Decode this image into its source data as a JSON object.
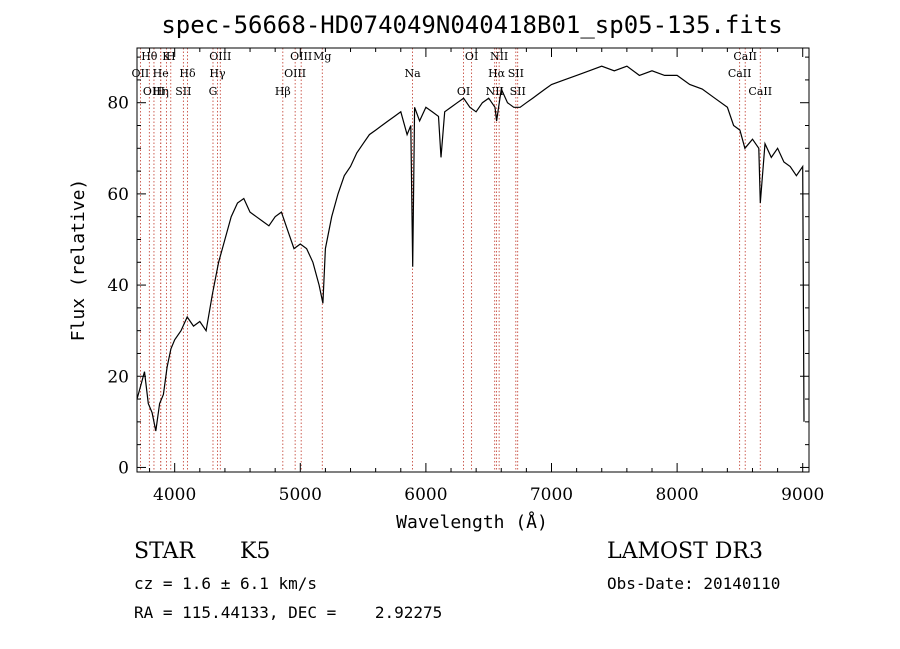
{
  "chart_data": {
    "type": "line",
    "title": "spec-56668-HD074049N040418B01_sp05-135.fits",
    "xlabel": "Wavelength (Å)",
    "ylabel": "Flux (relative)",
    "xlim": [
      3700,
      9050
    ],
    "ylim": [
      -1,
      92
    ],
    "x_ticks": [
      4000,
      5000,
      6000,
      7000,
      8000,
      9000
    ],
    "y_ticks": [
      0,
      20,
      40,
      60,
      80
    ],
    "grid": false,
    "series_color": "#000000",
    "line_color": "#c0392b",
    "series": [
      {
        "x": [
          3700,
          3730,
          3760,
          3790,
          3820,
          3850,
          3880,
          3910,
          3940,
          3970,
          4000,
          4050,
          4100,
          4150,
          4200,
          4250,
          4300,
          4350,
          4400,
          4450,
          4500,
          4550,
          4600,
          4650,
          4700,
          4750,
          4800,
          4850,
          4900,
          4950,
          5000,
          5050,
          5100,
          5150,
          5180,
          5200,
          5250,
          5300,
          5350,
          5400,
          5450,
          5500,
          5550,
          5600,
          5650,
          5700,
          5750,
          5800,
          5850,
          5880,
          5895,
          5910,
          5950,
          6000,
          6050,
          6100,
          6120,
          6150,
          6200,
          6250,
          6300,
          6350,
          6400,
          6450,
          6500,
          6550,
          6563,
          6600,
          6650,
          6700,
          6750,
          6800,
          6850,
          6900,
          6950,
          7000,
          7100,
          7200,
          7300,
          7400,
          7500,
          7600,
          7700,
          7800,
          7900,
          8000,
          8100,
          8200,
          8300,
          8400,
          8450,
          8500,
          8540,
          8600,
          8650,
          8662,
          8700,
          8750,
          8800,
          8850,
          8900,
          8950,
          9000,
          9010
        ],
        "y": [
          15,
          18,
          21,
          14,
          12,
          8,
          14,
          16,
          22,
          26,
          28,
          30,
          33,
          31,
          32,
          30,
          38,
          45,
          50,
          55,
          58,
          59,
          56,
          55,
          54,
          53,
          55,
          56,
          52,
          48,
          49,
          48,
          45,
          40,
          36,
          48,
          55,
          60,
          64,
          66,
          69,
          71,
          73,
          74,
          75,
          76,
          77,
          78,
          73,
          75,
          44,
          79,
          76,
          79,
          78,
          77,
          68,
          78,
          79,
          80,
          81,
          79,
          78,
          80,
          81,
          79,
          76,
          83,
          80,
          79,
          79,
          80,
          81,
          82,
          83,
          84,
          85,
          86,
          87,
          88,
          87,
          88,
          86,
          87,
          86,
          86,
          84,
          83,
          81,
          79,
          75,
          74,
          70,
          72,
          70,
          58,
          71,
          68,
          70,
          67,
          66,
          64,
          66,
          10
        ]
      }
    ],
    "lines": [
      {
        "label": "Hθ",
        "x": 3798
      },
      {
        "label": "OII",
        "x": 3727
      },
      {
        "label": "OIII",
        "x": 3835
      },
      {
        "label": "K",
        "x": 3934
      },
      {
        "label": "He",
        "x": 3889
      },
      {
        "label": "Hη",
        "x": 3889
      },
      {
        "label": "H",
        "x": 3969
      },
      {
        "label": "Hδ",
        "x": 4102
      },
      {
        "label": "SII",
        "x": 4069
      },
      {
        "label": "OIII",
        "x": 4363
      },
      {
        "label": "Hγ",
        "x": 4341
      },
      {
        "label": "G",
        "x": 4305
      },
      {
        "label": "OIII",
        "x": 5007
      },
      {
        "label": "OIII",
        "x": 4959
      },
      {
        "label": "Hβ",
        "x": 4861
      },
      {
        "label": "Mg",
        "x": 5175
      },
      {
        "label": "Na",
        "x": 5894
      },
      {
        "label": "OI",
        "x": 6300
      },
      {
        "label": "OI",
        "x": 6364
      },
      {
        "label": "Hα",
        "x": 6563
      },
      {
        "label": "NII",
        "x": 6548
      },
      {
        "label": "NII",
        "x": 6583
      },
      {
        "label": "SII",
        "x": 6716
      },
      {
        "label": "SII",
        "x": 6731
      },
      {
        "label": "CaII",
        "x": 8542
      },
      {
        "label": "CaII",
        "x": 8498
      },
      {
        "label": "CaII",
        "x": 8662
      }
    ]
  },
  "footer": {
    "class": "STAR",
    "subclass": "K5",
    "survey": "LAMOST DR3",
    "cz": "cz = 1.6 ± 6.1 km/s",
    "obs_date": "Obs-Date: 20140110",
    "radec": "RA = 115.44133, DEC =    2.92275"
  }
}
